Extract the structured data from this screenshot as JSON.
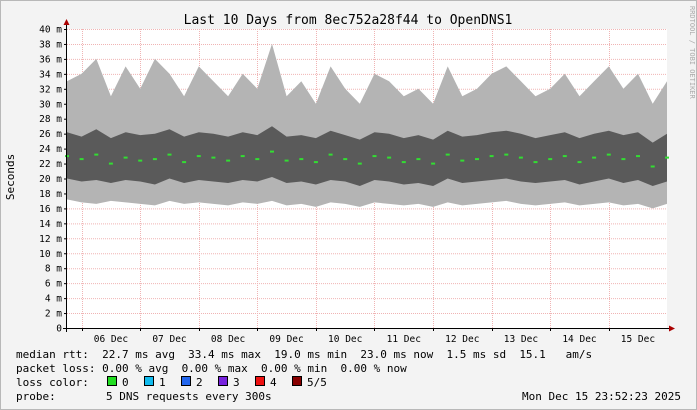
{
  "chart_data": {
    "type": "area",
    "title": "Last 10 Days from 8ec752a28f44 to OpenDNS1",
    "ylabel": "Seconds",
    "watermark": "RRDTOOL / TOBI OETIKER",
    "ylim": [
      0,
      0.04
    ],
    "yticks": [
      {
        "value": 0,
        "label": "0"
      },
      {
        "value": 0.002,
        "label": "2 m"
      },
      {
        "value": 0.004,
        "label": "4 m"
      },
      {
        "value": 0.006,
        "label": "6 m"
      },
      {
        "value": 0.008,
        "label": "8 m"
      },
      {
        "value": 0.01,
        "label": "10 m"
      },
      {
        "value": 0.012,
        "label": "12 m"
      },
      {
        "value": 0.014,
        "label": "14 m"
      },
      {
        "value": 0.016,
        "label": "16 m"
      },
      {
        "value": 0.018,
        "label": "18 m"
      },
      {
        "value": 0.02,
        "label": "20 m"
      },
      {
        "value": 0.022,
        "label": "22 m"
      },
      {
        "value": 0.024,
        "label": "24 m"
      },
      {
        "value": 0.026,
        "label": "26 m"
      },
      {
        "value": 0.028,
        "label": "28 m"
      },
      {
        "value": 0.03,
        "label": "30 m"
      },
      {
        "value": 0.032,
        "label": "32 m"
      },
      {
        "value": 0.034,
        "label": "34 m"
      },
      {
        "value": 0.036,
        "label": "36 m"
      },
      {
        "value": 0.038,
        "label": "38 m"
      },
      {
        "value": 0.04,
        "label": "40 m"
      }
    ],
    "xlim": [
      "2025-12-05T18:00",
      "2025-12-15T23:52"
    ],
    "xticks": [
      {
        "value": "2025-12-06T00:00",
        "label": "06 Dec"
      },
      {
        "value": "2025-12-07T00:00",
        "label": "07 Dec"
      },
      {
        "value": "2025-12-08T00:00",
        "label": "08 Dec"
      },
      {
        "value": "2025-12-09T00:00",
        "label": "09 Dec"
      },
      {
        "value": "2025-12-10T00:00",
        "label": "10 Dec"
      },
      {
        "value": "2025-12-11T00:00",
        "label": "11 Dec"
      },
      {
        "value": "2025-12-12T00:00",
        "label": "12 Dec"
      },
      {
        "value": "2025-12-13T00:00",
        "label": "13 Dec"
      },
      {
        "value": "2025-12-14T00:00",
        "label": "14 Dec"
      },
      {
        "value": "2025-12-15T00:00",
        "label": "15 Dec"
      }
    ],
    "grid": true,
    "series": {
      "x": [
        "2025-12-05T18:00",
        "2025-12-06T00:00",
        "2025-12-06T06:00",
        "2025-12-06T12:00",
        "2025-12-06T18:00",
        "2025-12-07T00:00",
        "2025-12-07T06:00",
        "2025-12-07T12:00",
        "2025-12-07T18:00",
        "2025-12-08T00:00",
        "2025-12-08T06:00",
        "2025-12-08T12:00",
        "2025-12-08T18:00",
        "2025-12-09T00:00",
        "2025-12-09T06:00",
        "2025-12-09T12:00",
        "2025-12-09T18:00",
        "2025-12-10T00:00",
        "2025-12-10T06:00",
        "2025-12-10T12:00",
        "2025-12-10T18:00",
        "2025-12-11T00:00",
        "2025-12-11T06:00",
        "2025-12-11T12:00",
        "2025-12-11T18:00",
        "2025-12-12T00:00",
        "2025-12-12T06:00",
        "2025-12-12T12:00",
        "2025-12-12T18:00",
        "2025-12-13T00:00",
        "2025-12-13T06:00",
        "2025-12-13T12:00",
        "2025-12-13T18:00",
        "2025-12-14T00:00",
        "2025-12-14T06:00",
        "2025-12-14T12:00",
        "2025-12-14T18:00",
        "2025-12-15T00:00",
        "2025-12-15T06:00",
        "2025-12-15T12:00",
        "2025-12-15T18:00",
        "2025-12-15T23:52"
      ],
      "median": [
        0.023,
        0.0226,
        0.0232,
        0.022,
        0.0228,
        0.0224,
        0.0226,
        0.0232,
        0.0222,
        0.023,
        0.0228,
        0.0224,
        0.023,
        0.0226,
        0.0236,
        0.0224,
        0.0226,
        0.0222,
        0.0232,
        0.0226,
        0.022,
        0.023,
        0.0228,
        0.0222,
        0.0226,
        0.022,
        0.0232,
        0.0224,
        0.0226,
        0.023,
        0.0232,
        0.0228,
        0.0222,
        0.0226,
        0.023,
        0.0222,
        0.0228,
        0.0232,
        0.0226,
        0.023,
        0.0216,
        0.0228
      ],
      "inner_low": [
        0.02,
        0.0196,
        0.0198,
        0.0194,
        0.0198,
        0.0196,
        0.0192,
        0.02,
        0.0194,
        0.0198,
        0.0196,
        0.0194,
        0.0198,
        0.0196,
        0.0202,
        0.0194,
        0.0196,
        0.0192,
        0.0198,
        0.0196,
        0.019,
        0.0198,
        0.0196,
        0.0192,
        0.0194,
        0.019,
        0.02,
        0.0194,
        0.0196,
        0.0198,
        0.02,
        0.0196,
        0.0194,
        0.0196,
        0.0198,
        0.0192,
        0.0196,
        0.02,
        0.0194,
        0.0198,
        0.019,
        0.0196
      ],
      "inner_high": [
        0.0262,
        0.0256,
        0.0266,
        0.0254,
        0.0262,
        0.0258,
        0.026,
        0.0266,
        0.0256,
        0.0262,
        0.026,
        0.0256,
        0.0262,
        0.0258,
        0.027,
        0.0256,
        0.0258,
        0.0254,
        0.0264,
        0.0258,
        0.0252,
        0.0262,
        0.026,
        0.0254,
        0.0258,
        0.0252,
        0.0264,
        0.0256,
        0.0258,
        0.0262,
        0.0264,
        0.026,
        0.0254,
        0.0258,
        0.0262,
        0.0254,
        0.026,
        0.0264,
        0.0258,
        0.0262,
        0.0248,
        0.026
      ],
      "outer_low": [
        0.0172,
        0.0168,
        0.0166,
        0.017,
        0.0168,
        0.0166,
        0.0164,
        0.017,
        0.0166,
        0.0168,
        0.0166,
        0.0164,
        0.0168,
        0.0166,
        0.017,
        0.0164,
        0.0166,
        0.0162,
        0.0168,
        0.0166,
        0.0162,
        0.0168,
        0.0166,
        0.0164,
        0.0166,
        0.0162,
        0.0168,
        0.0164,
        0.0166,
        0.0168,
        0.017,
        0.0166,
        0.0164,
        0.0166,
        0.0168,
        0.0164,
        0.0166,
        0.0168,
        0.0164,
        0.0166,
        0.016,
        0.0166
      ],
      "outer_high": [
        0.033,
        0.034,
        0.036,
        0.031,
        0.035,
        0.032,
        0.036,
        0.034,
        0.031,
        0.035,
        0.033,
        0.031,
        0.034,
        0.032,
        0.038,
        0.031,
        0.033,
        0.03,
        0.035,
        0.032,
        0.03,
        0.034,
        0.033,
        0.031,
        0.032,
        0.03,
        0.035,
        0.031,
        0.032,
        0.034,
        0.035,
        0.033,
        0.031,
        0.032,
        0.034,
        0.031,
        0.033,
        0.035,
        0.032,
        0.034,
        0.03,
        0.033
      ]
    },
    "colors": {
      "background": "#f3f3f3",
      "plot": "#ffffff",
      "grid": "#f0b4b4",
      "outer_band": "#b4b4b4",
      "inner_band": "#5a5a5a",
      "median": "#33dd33",
      "axis": "#000000",
      "arrow": "#aa0000"
    }
  },
  "stats": {
    "line1": "median rtt:  22.7 ms avg  33.4 ms max  19.0 ms min  23.0 ms now  1.5 ms sd  15.1   am/s",
    "line2": "packet loss: 0.00 % avg  0.00 % max  0.00 % min  0.00 % now",
    "loss_label": "loss color:",
    "loss_items": [
      {
        "label": "0",
        "color": "#22dd22"
      },
      {
        "label": "1",
        "color": "#11bbee"
      },
      {
        "label": "2",
        "color": "#2266ee"
      },
      {
        "label": "3",
        "color": "#7722dd"
      },
      {
        "label": "4",
        "color": "#ee1111"
      },
      {
        "label": "5/5",
        "color": "#880000"
      }
    ],
    "probe_label": "probe:",
    "probe_text": "5 DNS requests every 300s",
    "timestamp": "Mon Dec 15 23:52:23 2025"
  }
}
